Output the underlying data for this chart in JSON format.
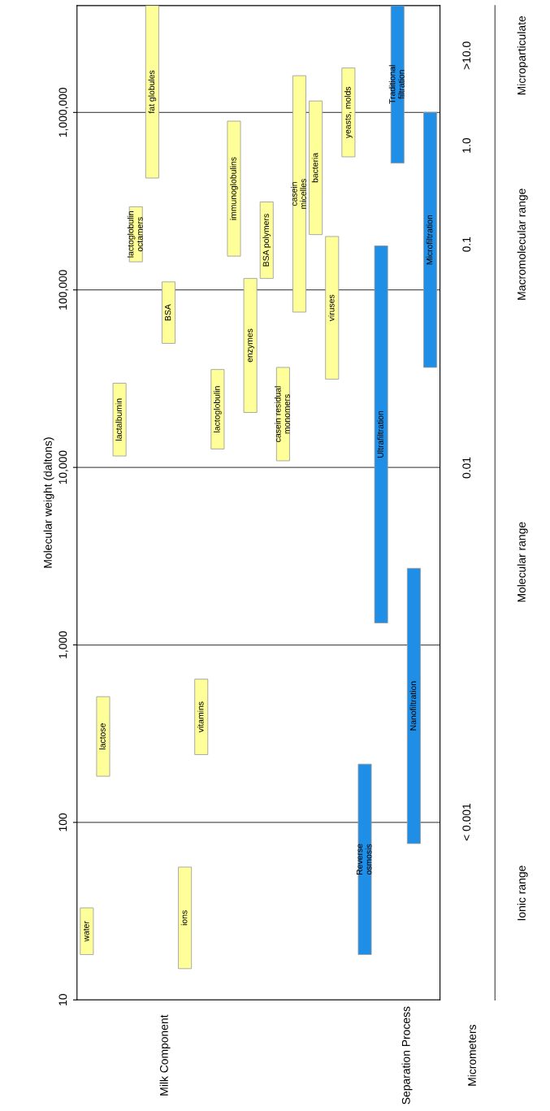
{
  "chart_data": {
    "type": "bar",
    "ylabel": "Molecular weight (daltons)",
    "categories": [
      "water",
      "lactose",
      "lactalbumin",
      "lactoglobulin octamers",
      "fat globules",
      "BSA",
      "ions",
      "vitamins",
      "lactoglobulin",
      "immunoglobulins",
      "enzymes",
      "BSA polymers",
      "casein residual monomers",
      "casein micelles",
      "bacteria",
      "viruses",
      "yeasts, molds",
      "Reverse osmosis",
      "Ultrafiltration",
      "Traditional filtration",
      "Nanofiltration",
      "Microfiltration"
    ],
    "base": [
      18,
      182,
      11600,
      144000,
      427000,
      50000,
      15,
      241,
      12700,
      155000,
      20400,
      116000,
      10900,
      75000,
      205000,
      31400,
      562000,
      18,
      1330,
      518000,
      76,
      36600
    ],
    "values": [
      15,
      329,
      18200,
      150000,
      3573000,
      61000,
      41,
      400,
      22900,
      738000,
      95600,
      197000,
      25700,
      1535000,
      955000,
      168600,
      1218000,
      195,
      175670,
      3482000,
      2624,
      963400
    ],
    "colors": [
      "#ffff99",
      "#ffff99",
      "#ffff99",
      "#ffff99",
      "#ffff99",
      "#ffff99",
      "#ffff99",
      "#ffff99",
      "#ffff99",
      "#ffff99",
      "#ffff99",
      "#ffff99",
      "#ffff99",
      "#ffff99",
      "#ffff99",
      "#ffff99",
      "#ffff99",
      "#1e8ee6",
      "#1e8ee6",
      "#1e8ee6",
      "#1e8ee6",
      "#1e8ee6"
    ],
    "log": "y",
    "ylim": [
      10,
      4000000
    ],
    "yticks": [
      10,
      100,
      {
        "value": 1000,
        "label": "1,000"
      },
      {
        "value": 10000,
        "label": "10,000"
      },
      {
        "value": 100000,
        "label": "100,000"
      },
      {
        "value": 1000000,
        "label": "1,000,000"
      }
    ],
    "grid": "y",
    "tick_labels": "y",
    "annotations": [
      "Milk Component",
      "Separation Process",
      "Micrometers",
      "< 0.001",
      "0.01",
      "0.1",
      "1.0",
      ">10.0",
      "Ionic range",
      "Molecular range",
      "Macromolecular range",
      "Microparticulate"
    ]
  }
}
